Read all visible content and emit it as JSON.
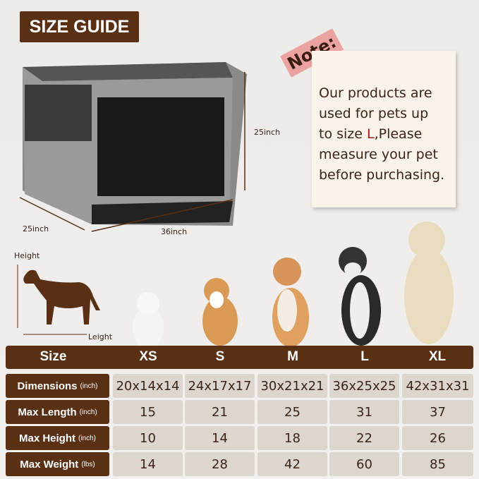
{
  "title": "SIZE GUIDE",
  "crate": {
    "height": "25inch",
    "depth": "25inch",
    "width": "36inch"
  },
  "note": {
    "tag": "Note:",
    "line1": "Our products are",
    "line2": "used for pets up",
    "line3_pre": "to size ",
    "line3_red": "L",
    "line3_post": ",Please",
    "line4": "measure your pet",
    "line5": "before purchasing.",
    "accent": "#a01818"
  },
  "diagram": {
    "height": "Height",
    "length": "Leight"
  },
  "table": {
    "header": "Size",
    "sizes": [
      "XS",
      "S",
      "M",
      "L",
      "XL"
    ],
    "rows": [
      {
        "label": "Dimensions",
        "unit": "(inch)",
        "values": [
          "20x14x14",
          "24x17x17",
          "30x21x21",
          "36x25x25",
          "42x31x31"
        ]
      },
      {
        "label": "Max Length",
        "unit": "(inch)",
        "values": [
          "15",
          "21",
          "25",
          "31",
          "37"
        ]
      },
      {
        "label": "Max Height",
        "unit": "(inch)",
        "values": [
          "10",
          "14",
          "18",
          "22",
          "26"
        ]
      },
      {
        "label": "Max Weight",
        "unit": "(lbs)",
        "values": [
          "14",
          "28",
          "42",
          "60",
          "85"
        ]
      }
    ]
  },
  "colors": {
    "brown": "#5a3014",
    "cell": "#ddd6ce",
    "tape": "#eba3a0"
  }
}
